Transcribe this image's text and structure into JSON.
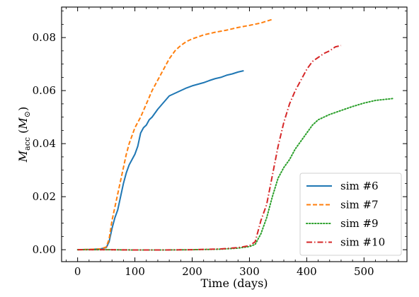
{
  "chart_data": {
    "type": "line",
    "title": "",
    "xlabel": "Time (days)",
    "ylabel": "M_acc (M_⊙)",
    "ylabel_parts": {
      "symbol": "M",
      "sub": "acc",
      "unit_symbol": "M",
      "unit_sub": "⊙"
    },
    "xlim": [
      -28,
      575
    ],
    "ylim": [
      -0.0045,
      0.0915
    ],
    "xticks": [
      0,
      100,
      200,
      300,
      400,
      500
    ],
    "xtick_labels": [
      "0",
      "100",
      "200",
      "300",
      "400",
      "500"
    ],
    "yticks": [
      0.0,
      0.02,
      0.04,
      0.06,
      0.08
    ],
    "ytick_labels": [
      "0.00",
      "0.02",
      "0.04",
      "0.06",
      "0.08"
    ],
    "grid": false,
    "legend_position": "lower-right",
    "series": [
      {
        "name": "sim #6",
        "color": "#1f77b4",
        "dash": "solid",
        "x": [
          0,
          20,
          40,
          50,
          55,
          60,
          65,
          70,
          75,
          80,
          85,
          90,
          95,
          100,
          105,
          110,
          115,
          120,
          125,
          130,
          140,
          150,
          160,
          170,
          180,
          190,
          200,
          210,
          220,
          230,
          240,
          250,
          260,
          270,
          280,
          290
        ],
        "y": [
          0.0,
          0.0001,
          0.0003,
          0.0008,
          0.003,
          0.008,
          0.012,
          0.015,
          0.02,
          0.025,
          0.029,
          0.032,
          0.034,
          0.036,
          0.039,
          0.044,
          0.046,
          0.047,
          0.049,
          0.05,
          0.053,
          0.0555,
          0.058,
          0.059,
          0.06,
          0.061,
          0.0618,
          0.0624,
          0.063,
          0.0638,
          0.0645,
          0.065,
          0.0658,
          0.0663,
          0.067,
          0.0675
        ]
      },
      {
        "name": "sim #7",
        "color": "#ff7f0e",
        "dash": "dashed",
        "x": [
          0,
          20,
          40,
          50,
          55,
          60,
          65,
          70,
          75,
          80,
          85,
          90,
          95,
          100,
          110,
          120,
          130,
          140,
          150,
          160,
          170,
          180,
          190,
          200,
          220,
          240,
          260,
          280,
          300,
          320,
          342
        ],
        "y": [
          0.0,
          0.0001,
          0.0003,
          0.001,
          0.004,
          0.011,
          0.016,
          0.021,
          0.026,
          0.031,
          0.036,
          0.04,
          0.043,
          0.046,
          0.05,
          0.055,
          0.06,
          0.064,
          0.068,
          0.072,
          0.075,
          0.077,
          0.0785,
          0.0795,
          0.081,
          0.082,
          0.0828,
          0.0838,
          0.0846,
          0.0855,
          0.087
        ]
      },
      {
        "name": "sim #9",
        "color": "#2ca02c",
        "dash": "dotted",
        "x": [
          0,
          50,
          100,
          150,
          200,
          250,
          280,
          300,
          310,
          320,
          330,
          340,
          350,
          360,
          370,
          380,
          390,
          400,
          410,
          420,
          440,
          460,
          480,
          500,
          520,
          550
        ],
        "y": [
          0.0,
          0.0,
          -0.0001,
          -0.0001,
          0.0,
          0.0002,
          0.0006,
          0.0012,
          0.002,
          0.006,
          0.012,
          0.02,
          0.027,
          0.031,
          0.034,
          0.038,
          0.041,
          0.044,
          0.047,
          0.049,
          0.051,
          0.0525,
          0.054,
          0.0553,
          0.0563,
          0.057
        ]
      },
      {
        "name": "sim #10",
        "color": "#d62728",
        "dash": "dashdot",
        "x": [
          0,
          50,
          100,
          150,
          200,
          250,
          280,
          300,
          310,
          320,
          330,
          340,
          350,
          360,
          370,
          380,
          390,
          400,
          410,
          420,
          430,
          440,
          450,
          460
        ],
        "y": [
          0.0,
          0.0,
          -0.0001,
          -0.0001,
          0.0,
          0.0003,
          0.0008,
          0.0015,
          0.003,
          0.011,
          0.017,
          0.028,
          0.039,
          0.048,
          0.055,
          0.06,
          0.064,
          0.068,
          0.071,
          0.0725,
          0.074,
          0.075,
          0.0765,
          0.077
        ]
      }
    ]
  }
}
